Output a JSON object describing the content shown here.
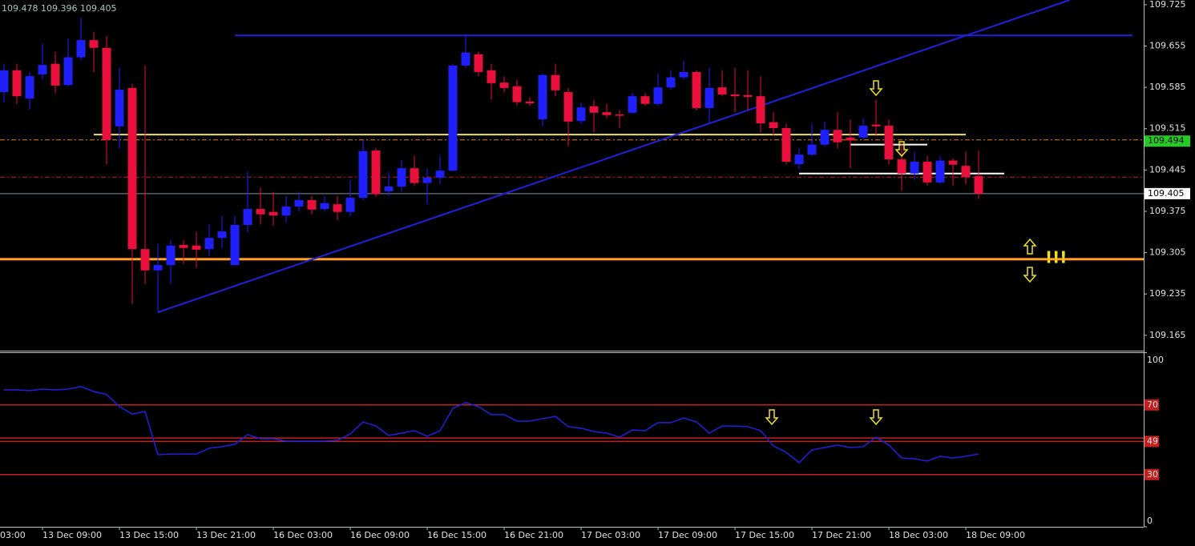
{
  "chart_data": [
    {
      "type": "candlestick",
      "header": "109.478 109.396 109.405",
      "up_color": "#2020ff",
      "down_color": "#e8103c",
      "open": [
        109.577,
        109.614,
        109.566,
        109.607,
        109.625,
        109.589,
        109.636,
        109.665,
        109.652,
        109.519,
        109.584,
        109.311,
        109.275,
        109.284,
        109.318,
        109.317,
        109.311,
        109.33,
        109.284,
        109.352,
        109.379,
        109.374,
        109.368,
        109.383,
        109.394,
        109.379,
        109.387,
        109.374,
        109.398,
        109.478,
        109.409,
        109.417,
        109.448,
        109.423,
        109.432,
        109.444,
        109.622,
        109.641,
        109.614,
        109.593,
        109.587,
        109.561,
        109.531,
        109.606,
        109.577,
        109.528,
        109.553,
        109.543,
        109.539,
        109.542,
        109.57,
        109.557,
        109.585,
        109.602,
        109.611,
        109.55,
        109.585,
        109.573,
        109.572,
        109.57,
        109.526,
        109.516,
        109.455,
        109.471,
        109.488,
        109.513,
        109.5,
        109.5,
        109.522,
        109.52,
        109.463,
        109.439,
        109.459,
        109.424,
        109.461,
        109.452,
        109.435
      ],
      "high": [
        109.625,
        109.625,
        109.611,
        109.659,
        109.645,
        109.668,
        109.703,
        109.679,
        109.672,
        109.618,
        109.591,
        109.622,
        109.32,
        109.326,
        109.326,
        109.34,
        109.353,
        109.367,
        109.367,
        109.442,
        109.415,
        109.408,
        109.401,
        109.408,
        109.401,
        109.401,
        109.401,
        109.428,
        109.496,
        109.482,
        109.442,
        109.462,
        109.469,
        109.448,
        109.469,
        109.625,
        109.672,
        109.645,
        109.625,
        109.604,
        109.598,
        109.568,
        109.608,
        109.625,
        109.584,
        109.56,
        109.564,
        109.557,
        109.546,
        109.576,
        109.576,
        109.608,
        109.614,
        109.63,
        109.614,
        109.618,
        109.614,
        109.618,
        109.614,
        109.604,
        109.543,
        109.523,
        109.482,
        109.523,
        109.527,
        109.543,
        109.53,
        109.532,
        109.564,
        109.53,
        109.489,
        109.476,
        109.469,
        109.469,
        109.465,
        109.476,
        109.478
      ],
      "low": [
        109.56,
        109.557,
        109.547,
        109.598,
        109.575,
        109.587,
        109.631,
        109.611,
        109.455,
        109.482,
        109.218,
        109.252,
        109.204,
        109.252,
        109.286,
        109.279,
        109.299,
        109.313,
        109.284,
        109.34,
        109.353,
        109.351,
        109.356,
        109.374,
        109.37,
        109.374,
        109.36,
        109.367,
        109.394,
        109.4,
        109.401,
        109.408,
        109.419,
        109.387,
        109.421,
        109.442,
        109.618,
        109.604,
        109.564,
        109.577,
        109.554,
        109.554,
        109.519,
        109.57,
        109.485,
        109.523,
        109.509,
        109.532,
        109.516,
        109.541,
        109.554,
        109.554,
        109.581,
        109.598,
        109.546,
        109.523,
        109.57,
        109.543,
        109.546,
        109.509,
        109.503,
        109.455,
        109.446,
        109.469,
        109.485,
        109.482,
        109.448,
        109.496,
        109.503,
        109.455,
        109.41,
        109.428,
        109.419,
        109.421,
        109.419,
        109.421,
        109.396
      ],
      "close": [
        109.614,
        109.57,
        109.604,
        109.623,
        109.588,
        109.636,
        109.665,
        109.652,
        109.496,
        109.581,
        109.311,
        109.275,
        109.284,
        109.317,
        109.313,
        109.31,
        109.33,
        109.341,
        109.352,
        109.379,
        109.37,
        109.368,
        109.383,
        109.394,
        109.378,
        109.389,
        109.374,
        109.398,
        109.477,
        109.404,
        109.417,
        109.448,
        109.423,
        109.432,
        109.444,
        109.622,
        109.644,
        109.611,
        109.592,
        109.584,
        109.56,
        109.558,
        109.606,
        109.58,
        109.527,
        109.551,
        109.542,
        109.538,
        109.537,
        109.57,
        109.557,
        109.585,
        109.602,
        109.611,
        109.55,
        109.584,
        109.573,
        109.57,
        109.569,
        109.524,
        109.516,
        109.459,
        109.471,
        109.488,
        109.513,
        109.492,
        109.495,
        109.52,
        109.519,
        109.463,
        109.439,
        109.459,
        109.424,
        109.461,
        109.454,
        109.433,
        109.405
      ],
      "ylim": [
        109.139,
        109.733
      ],
      "yticks": [
        109.725,
        109.655,
        109.585,
        109.515,
        109.445,
        109.375,
        109.305,
        109.235,
        109.165
      ],
      "xticks": [
        {
          "value": -3,
          "label": "03:00"
        },
        {
          "value": 3,
          "label": "13 Dec 09:00"
        },
        {
          "value": 9,
          "label": "13 Dec 15:00"
        },
        {
          "value": 15,
          "label": "13 Dec 21:00"
        },
        {
          "value": 21,
          "label": "16 Dec 03:00"
        },
        {
          "value": 27,
          "label": "16 Dec 09:00"
        },
        {
          "value": 33,
          "label": "16 Dec 15:00"
        },
        {
          "value": 39,
          "label": "16 Dec 21:00"
        },
        {
          "value": 45,
          "label": "17 Dec 03:00"
        },
        {
          "value": 51,
          "label": "17 Dec 09:00"
        },
        {
          "value": 57,
          "label": "17 Dec 15:00"
        },
        {
          "value": 63,
          "label": "17 Dec 21:00"
        },
        {
          "value": 69,
          "label": "18 Dec 03:00"
        },
        {
          "value": 75,
          "label": "18 Dec 09:00"
        }
      ],
      "lines": [
        {
          "price": 109.673,
          "from": 18,
          "to": 88,
          "color": "#2020e0",
          "width": 2
        },
        {
          "price": 109.505,
          "from": 7,
          "to": 75,
          "color": "#f0e060",
          "width": 2
        },
        {
          "price": 109.294,
          "color": "#ffa020",
          "width": 3
        },
        {
          "price": 109.488,
          "from": 66,
          "to": 72,
          "color": "#ffffff",
          "width": 2
        },
        {
          "price": 109.439,
          "from": 62,
          "to": 78,
          "color": "#ffffff",
          "width": 2
        },
        {
          "price": 109.496,
          "color": "#e08020",
          "width": 1,
          "dash": "6 3 2 3"
        },
        {
          "price": 109.433,
          "color": "#c02020",
          "width": 1,
          "dash": "6 3 2 3"
        },
        {
          "price": 109.405,
          "color": "#8090a0",
          "width": 1
        }
      ],
      "trendline": {
        "points": [
          [
            12,
            109.204
          ],
          [
            83.1,
            109.733
          ]
        ],
        "color": "#2020e0"
      },
      "price_markers": [
        {
          "value": 109.494,
          "color": "#22cc22"
        },
        {
          "value": 109.405,
          "color": "#ffffff"
        }
      ],
      "annotation": "!!!"
    },
    {
      "type": "line",
      "color": "#2020e0",
      "values": [
        78.6,
        78.6,
        78.2,
        79.1,
        78.6,
        79.1,
        80.5,
        77.7,
        75.9,
        69.0,
        64.8,
        66.2,
        41.4,
        41.8,
        41.8,
        41.8,
        45.1,
        46.0,
        47.4,
        52.9,
        50.6,
        50.6,
        49.2,
        49.2,
        49.2,
        49.2,
        49.7,
        53.3,
        60.2,
        57.9,
        52.4,
        53.8,
        55.2,
        52.0,
        55.2,
        68.0,
        71.3,
        69.0,
        64.4,
        64.4,
        60.7,
        60.7,
        62.1,
        63.4,
        57.5,
        56.6,
        54.7,
        53.8,
        51.5,
        55.6,
        55.2,
        59.8,
        59.8,
        62.5,
        60.2,
        53.8,
        57.9,
        57.9,
        57.5,
        55.2,
        46.4,
        42.8,
        36.8,
        44.1,
        45.5,
        46.9,
        45.5,
        46.0,
        51.5,
        46.9,
        39.5,
        39.1,
        37.7,
        40.5,
        39.5,
        40.5,
        41.8
      ],
      "ylim": [
        0,
        100
      ],
      "yticks": [
        100,
        70,
        49,
        30,
        0
      ],
      "levels": [
        70,
        51,
        49,
        30
      ],
      "level_color": "#c02020"
    }
  ]
}
